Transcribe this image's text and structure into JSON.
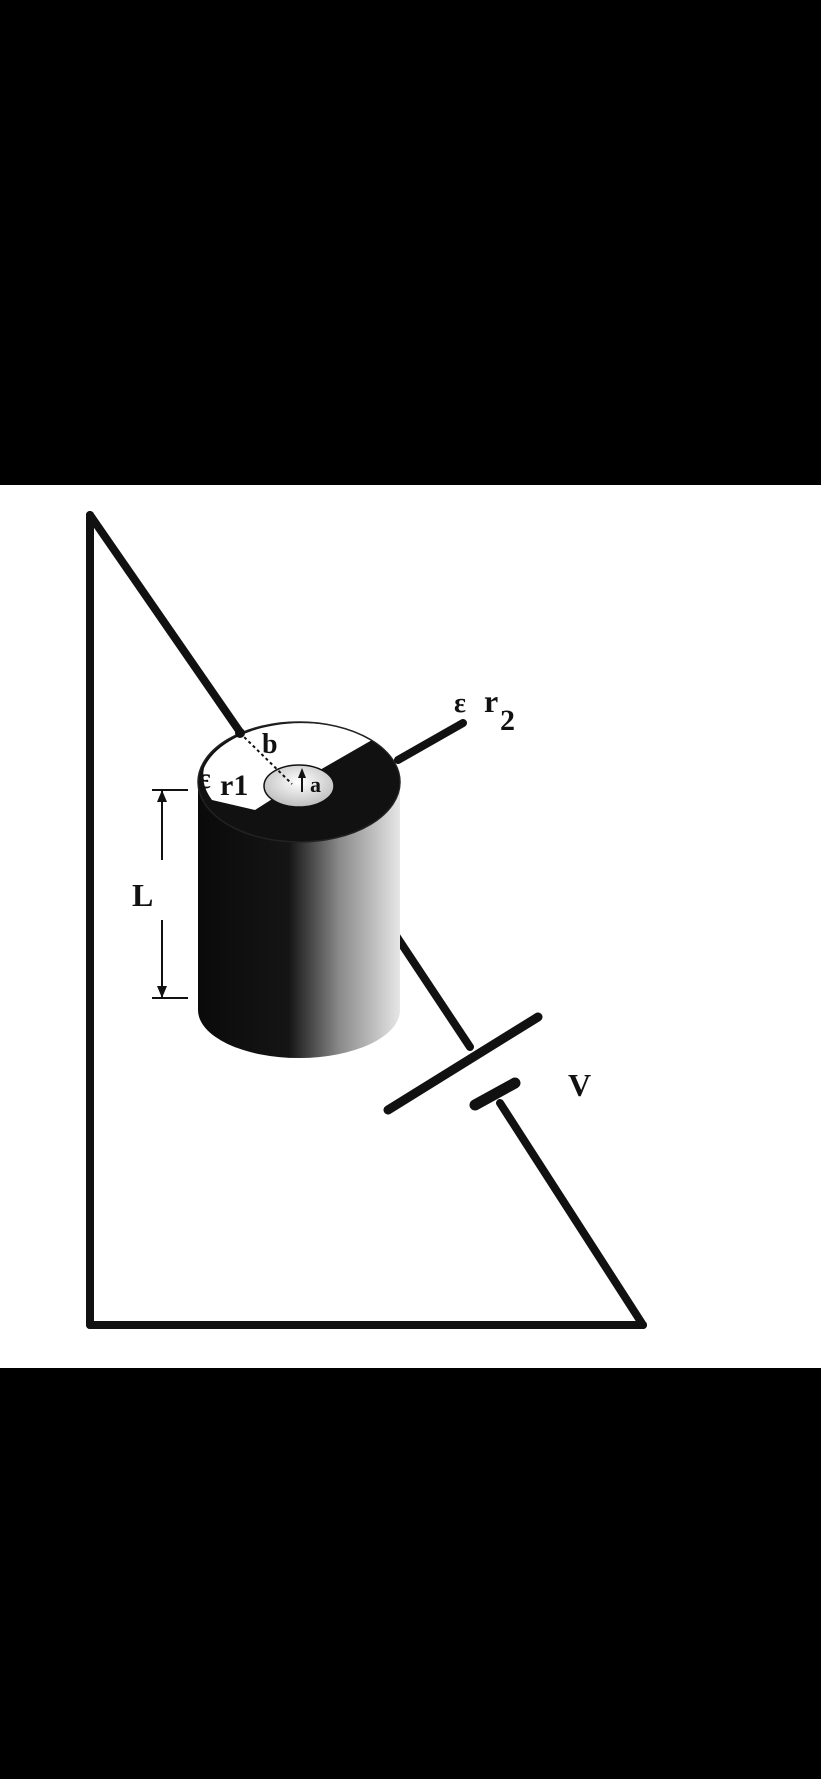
{
  "colors": {
    "background": "#000000",
    "panel": "#ffffff",
    "ink": "#111111"
  },
  "labels": {
    "radius_outer": "b",
    "radius_inner": "a",
    "length": "L",
    "permittivity_1_symbol": "ε",
    "permittivity_1_sub": "r1",
    "permittivity_2_symbol": "ε",
    "permittivity_2_r": "r",
    "permittivity_2_sub": "2",
    "voltage": "V"
  }
}
